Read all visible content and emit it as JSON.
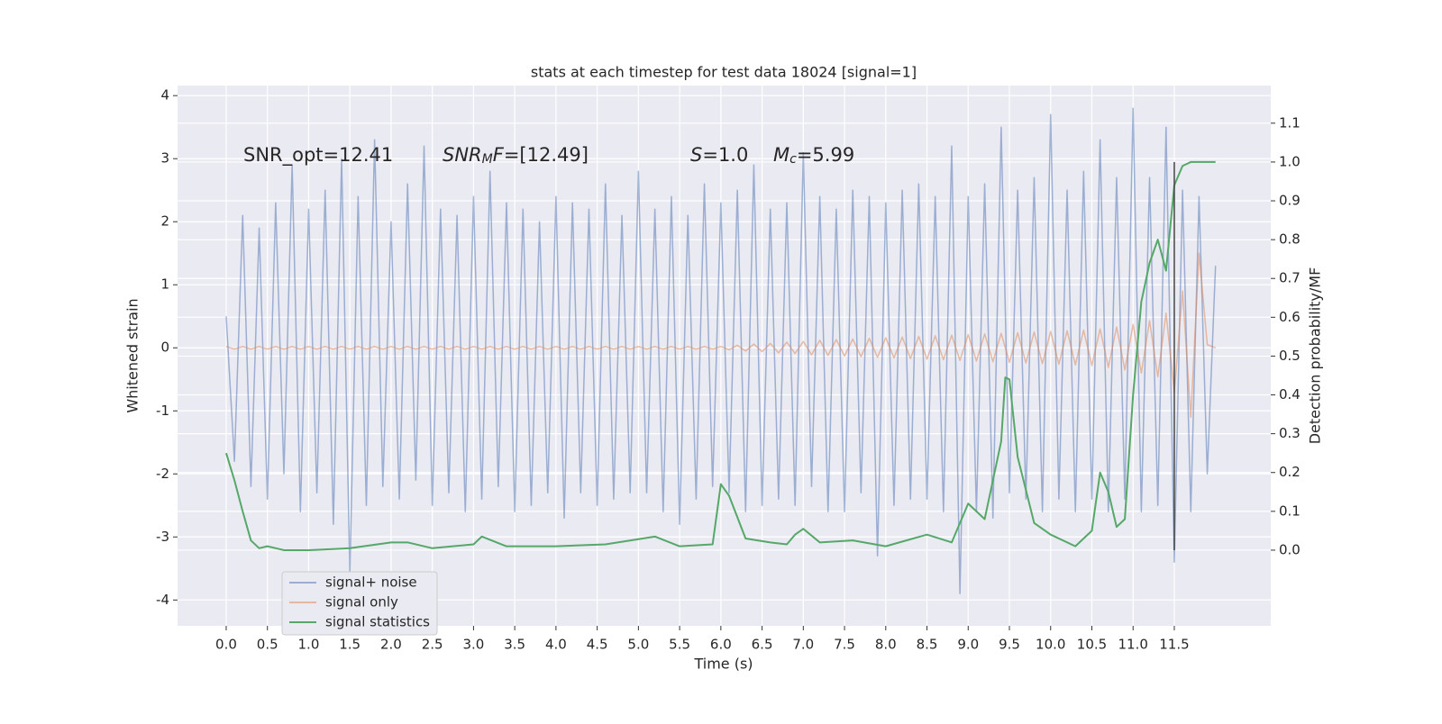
{
  "chart_data": {
    "type": "line",
    "title": "stats at each timestep for test data 18024 [signal=1]",
    "xlabel": "Time (s)",
    "ylabel": "Whitened strain",
    "y2label": "Detection probability/MF",
    "xlim": [
      -0.59,
      12.67
    ],
    "ylim": [
      -4.41,
      4.16
    ],
    "y2lim": [
      -0.195,
      1.197
    ],
    "grid": true,
    "legend": "lower left",
    "xticks": [
      {
        "value": 0,
        "label": "0.0"
      },
      0.5,
      {
        "value": 1,
        "label": "1.0"
      },
      1.5,
      {
        "value": 2,
        "label": "2.0"
      },
      2.5,
      {
        "value": 3,
        "label": "3.0"
      },
      3.5,
      {
        "value": 4,
        "label": "4.0"
      },
      4.5,
      {
        "value": 5,
        "label": "5.0"
      },
      5.5,
      {
        "value": 6,
        "label": "6.0"
      },
      6.5,
      {
        "value": 7,
        "label": "7.0"
      },
      7.5,
      {
        "value": 8,
        "label": "8.0"
      },
      8.5,
      {
        "value": 9,
        "label": "9.0"
      },
      9.5,
      {
        "value": 10,
        "label": "10.0"
      },
      10.5,
      {
        "value": 11,
        "label": "11.0"
      },
      11.5
    ],
    "yticks": [
      -4,
      -3,
      -2,
      -1,
      0,
      1,
      2,
      3,
      4
    ],
    "y2ticks": [
      {
        "value": 0,
        "label": "0.0"
      },
      0.1,
      0.2,
      0.3,
      0.4,
      0.5,
      0.6,
      0.7,
      0.8,
      0.9,
      {
        "value": 1,
        "label": "1.0"
      },
      1.1
    ],
    "annotations": [
      [
        {
          "text": "SNR_opt=12.41"
        }
      ],
      [
        {
          "text": "SNR",
          "italic": true
        },
        {
          "text": "M",
          "italic": true,
          "sub": true
        },
        {
          "text": "F",
          "italic": true
        },
        {
          "text": "=[12.49]"
        }
      ],
      [
        {
          "text": "S",
          "italic": true
        },
        {
          "text": "=1.0"
        }
      ],
      [
        {
          "text": "M",
          "italic": true
        },
        {
          "text": "c",
          "italic": true,
          "sub": true
        },
        {
          "text": "=5.99"
        }
      ]
    ],
    "vline": {
      "x": 11.5,
      "y2min": 0.0,
      "y2max": 1.0,
      "color": "#444444"
    },
    "x": [
      0,
      0.1,
      0.2,
      0.3,
      0.4,
      0.5,
      0.6,
      0.7,
      0.8,
      0.9,
      1,
      1.1,
      1.2,
      1.3,
      1.4,
      1.5,
      1.6,
      1.7,
      1.8,
      1.9,
      2,
      2.1,
      2.2,
      2.3,
      2.4,
      2.5,
      2.6,
      2.7,
      2.8,
      2.9,
      3,
      3.1,
      3.2,
      3.3,
      3.4,
      3.5,
      3.6,
      3.7,
      3.8,
      3.9,
      4,
      4.1,
      4.2,
      4.3,
      4.4,
      4.5,
      4.6,
      4.7,
      4.8,
      4.9,
      5,
      5.1,
      5.2,
      5.3,
      5.4,
      5.5,
      5.6,
      5.7,
      5.8,
      5.9,
      6,
      6.1,
      6.2,
      6.3,
      6.4,
      6.5,
      6.6,
      6.7,
      6.8,
      6.9,
      7,
      7.1,
      7.2,
      7.3,
      7.4,
      7.5,
      7.6,
      7.7,
      7.8,
      7.9,
      8,
      8.1,
      8.2,
      8.3,
      8.4,
      8.5,
      8.6,
      8.7,
      8.8,
      8.9,
      9,
      9.1,
      9.2,
      9.3,
      9.4,
      9.5,
      9.6,
      9.7,
      9.8,
      9.9,
      10,
      10.1,
      10.2,
      10.3,
      10.4,
      10.5,
      10.6,
      10.7,
      10.8,
      10.9,
      11,
      11.1,
      11.2,
      11.3,
      11.4,
      11.5,
      11.6,
      11.7,
      11.8,
      11.9,
      12
    ],
    "series": [
      {
        "name": "signal+ noise",
        "color": "#4c72b0",
        "opacity": 0.5,
        "values": [
          0.5,
          -1.8,
          2.1,
          -2.2,
          1.9,
          -2.4,
          2.3,
          -2.0,
          2.9,
          -2.6,
          2.2,
          -2.3,
          2.5,
          -2.8,
          3.0,
          -3.6,
          2.4,
          -2.5,
          3.3,
          -2.2,
          2.0,
          -2.4,
          2.6,
          -2.1,
          3.2,
          -2.5,
          2.2,
          -2.3,
          2.1,
          -2.6,
          2.4,
          -2.4,
          2.8,
          -2.2,
          2.3,
          -2.6,
          2.2,
          -2.5,
          2.0,
          -2.3,
          2.4,
          -2.7,
          2.3,
          -2.3,
          2.2,
          -2.5,
          2.6,
          -2.4,
          2.1,
          -2.3,
          2.8,
          -2.3,
          2.2,
          -2.6,
          2.4,
          -2.8,
          2.1,
          -2.4,
          2.6,
          -2.2,
          2.3,
          -2.3,
          2.5,
          -2.6,
          2.9,
          -2.5,
          2.2,
          -2.4,
          2.3,
          -2.5,
          3.1,
          -2.2,
          2.4,
          -2.6,
          2.2,
          -2.6,
          2.5,
          -2.3,
          2.4,
          -3.3,
          2.3,
          -2.5,
          2.5,
          -2.4,
          2.6,
          -2.4,
          2.4,
          -2.6,
          3.2,
          -3.9,
          2.4,
          -2.6,
          2.6,
          -2.7,
          3.5,
          -2.3,
          2.5,
          -2.4,
          2.7,
          -2.6,
          3.7,
          -2.4,
          2.5,
          -2.6,
          2.8,
          -2.4,
          3.3,
          -2.6,
          2.7,
          -2.4,
          3.8,
          -2.6,
          2.7,
          -2.5,
          3.5,
          -3.4,
          2.5,
          -2.6,
          2.4,
          -2.0,
          1.3
        ]
      },
      {
        "name": "signal only",
        "color": "#dd8452",
        "opacity": 0.5,
        "values": [
          0.02,
          -0.02,
          0.02,
          -0.02,
          0.02,
          -0.02,
          0.02,
          -0.02,
          0.02,
          -0.02,
          0.02,
          -0.02,
          0.02,
          -0.02,
          0.02,
          -0.02,
          0.02,
          -0.02,
          0.02,
          -0.02,
          0.02,
          -0.02,
          0.02,
          -0.02,
          0.02,
          -0.02,
          0.02,
          -0.02,
          0.02,
          -0.02,
          0.02,
          -0.02,
          0.02,
          -0.02,
          0.02,
          -0.02,
          0.02,
          -0.02,
          0.02,
          -0.02,
          0.02,
          -0.02,
          0.02,
          -0.02,
          0.02,
          -0.02,
          0.02,
          -0.02,
          0.02,
          -0.02,
          0.02,
          -0.02,
          0.02,
          -0.02,
          0.02,
          -0.02,
          0.02,
          -0.02,
          0.02,
          -0.02,
          0.02,
          -0.03,
          0.04,
          -0.05,
          0.06,
          -0.06,
          0.07,
          -0.08,
          0.09,
          -0.09,
          0.1,
          -0.11,
          0.12,
          -0.12,
          0.13,
          -0.13,
          0.14,
          -0.14,
          0.15,
          -0.15,
          0.16,
          -0.16,
          0.17,
          -0.17,
          0.18,
          -0.18,
          0.19,
          -0.19,
          0.2,
          -0.2,
          0.21,
          -0.21,
          0.22,
          -0.22,
          0.23,
          -0.23,
          0.24,
          -0.24,
          0.25,
          -0.25,
          0.26,
          -0.26,
          0.27,
          -0.27,
          0.28,
          -0.28,
          0.3,
          -0.31,
          0.33,
          -0.35,
          0.37,
          -0.4,
          0.43,
          -0.46,
          0.55,
          -0.7,
          0.9,
          -1.1,
          1.5,
          0.05,
          0
        ]
      },
      {
        "name": "signal statistics",
        "color": "#55a868",
        "opacity": 1,
        "axis": "y2",
        "x": [
          0,
          0.1,
          0.2,
          0.3,
          0.4,
          0.5,
          0.7,
          1,
          1.5,
          2,
          2.2,
          2.5,
          3,
          3.1,
          3.4,
          4,
          4.6,
          5.2,
          5.5,
          5.9,
          6,
          6.1,
          6.3,
          6.6,
          6.8,
          6.9,
          7,
          7.2,
          7.6,
          8,
          8.5,
          8.8,
          9,
          9.2,
          9.4,
          9.45,
          9.5,
          9.6,
          9.8,
          10,
          10.3,
          10.5,
          10.6,
          10.7,
          10.8,
          10.9,
          11,
          11.1,
          11.2,
          11.3,
          11.4,
          11.5,
          11.6,
          11.7,
          12
        ],
        "values": [
          0.25,
          0.18,
          0.1,
          0.025,
          0.005,
          0.01,
          0,
          0,
          0.005,
          0.02,
          0.02,
          0.005,
          0.015,
          0.035,
          0.01,
          0.01,
          0.015,
          0.035,
          0.01,
          0.015,
          0.17,
          0.14,
          0.03,
          0.02,
          0.015,
          0.04,
          0.055,
          0.02,
          0.025,
          0.01,
          0.04,
          0.02,
          0.12,
          0.08,
          0.28,
          0.445,
          0.44,
          0.24,
          0.07,
          0.04,
          0.01,
          0.05,
          0.2,
          0.15,
          0.06,
          0.08,
          0.4,
          0.64,
          0.74,
          0.8,
          0.72,
          0.94,
          0.99,
          1.0,
          1.0
        ]
      }
    ]
  }
}
